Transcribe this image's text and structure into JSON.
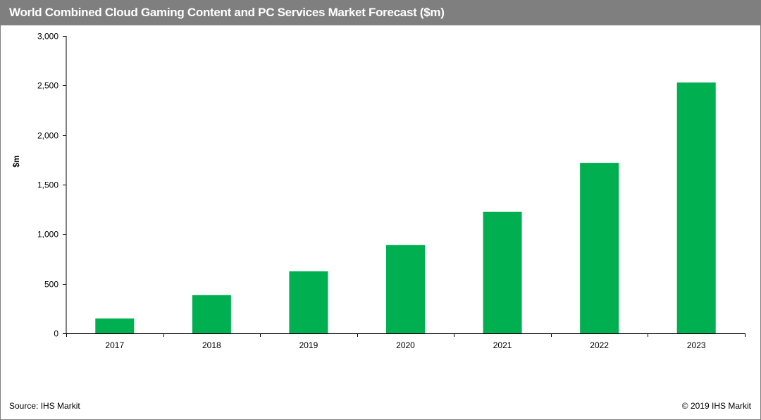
{
  "chart_data": {
    "type": "bar",
    "title": "World Combined Cloud Gaming Content and PC Services Market Forecast ($m)",
    "categories": [
      "2017",
      "2018",
      "2019",
      "2020",
      "2021",
      "2022",
      "2023"
    ],
    "values": [
      150,
      385,
      625,
      890,
      1225,
      1720,
      2530
    ],
    "ylabel": "$m",
    "xlabel": "",
    "ylim": [
      0,
      3000
    ],
    "yticks": [
      0,
      500,
      1000,
      1500,
      2000,
      2500,
      3000
    ],
    "ytick_labels": [
      "0",
      "500",
      "1,000",
      "1,500",
      "2,000",
      "2,500",
      "3,000"
    ],
    "bar_color": "#00b050",
    "grid": false,
    "legend": "none"
  },
  "footer": {
    "source": "Source: IHS Markit",
    "copyright": "© 2019 IHS Markit"
  },
  "colors": {
    "title_bar": "#7f7f7f",
    "bar": "#00b050"
  }
}
